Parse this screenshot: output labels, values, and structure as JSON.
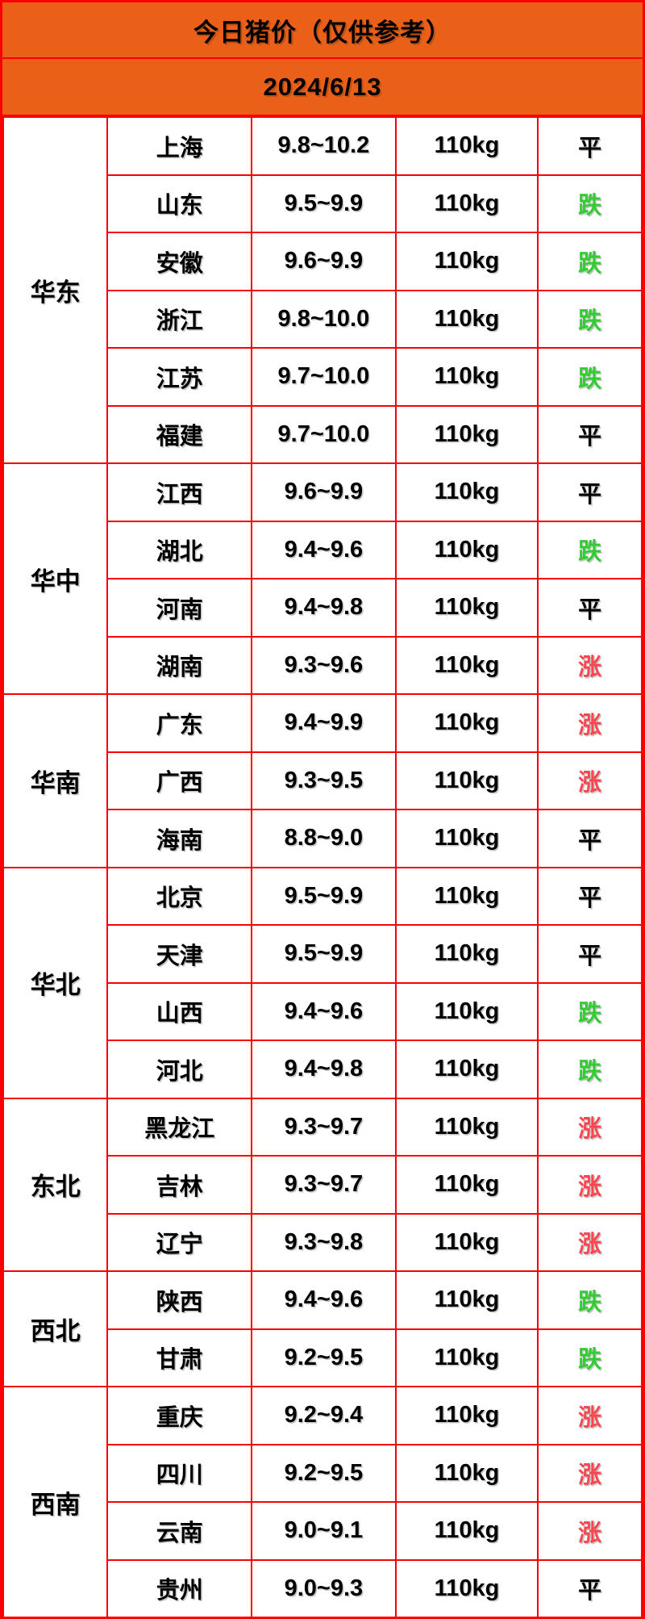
{
  "header": {
    "title": "今日猪价（仅供参考）",
    "date": "2024/6/13"
  },
  "colors": {
    "header_bg": "#ea6018",
    "border": "#fa0000",
    "trend_up": "#fb4550",
    "trend_down": "#33cc33",
    "trend_flat": "#000000"
  },
  "table": {
    "regions": [
      {
        "name": "华东",
        "rows": [
          {
            "province": "上海",
            "price": "9.8~10.2",
            "weight": "110kg",
            "trend": "平",
            "trend_type": "flat"
          },
          {
            "province": "山东",
            "price": "9.5~9.9",
            "weight": "110kg",
            "trend": "跌",
            "trend_type": "down"
          },
          {
            "province": "安徽",
            "price": "9.6~9.9",
            "weight": "110kg",
            "trend": "跌",
            "trend_type": "down"
          },
          {
            "province": "浙江",
            "price": "9.8~10.0",
            "weight": "110kg",
            "trend": "跌",
            "trend_type": "down"
          },
          {
            "province": "江苏",
            "price": "9.7~10.0",
            "weight": "110kg",
            "trend": "跌",
            "trend_type": "down"
          },
          {
            "province": "福建",
            "price": "9.7~10.0",
            "weight": "110kg",
            "trend": "平",
            "trend_type": "flat"
          }
        ]
      },
      {
        "name": "华中",
        "rows": [
          {
            "province": "江西",
            "price": "9.6~9.9",
            "weight": "110kg",
            "trend": "平",
            "trend_type": "flat"
          },
          {
            "province": "湖北",
            "price": "9.4~9.6",
            "weight": "110kg",
            "trend": "跌",
            "trend_type": "down"
          },
          {
            "province": "河南",
            "price": "9.4~9.8",
            "weight": "110kg",
            "trend": "平",
            "trend_type": "flat"
          },
          {
            "province": "湖南",
            "price": "9.3~9.6",
            "weight": "110kg",
            "trend": "涨",
            "trend_type": "up"
          }
        ]
      },
      {
        "name": "华南",
        "rows": [
          {
            "province": "广东",
            "price": "9.4~9.9",
            "weight": "110kg",
            "trend": "涨",
            "trend_type": "up"
          },
          {
            "province": "广西",
            "price": "9.3~9.5",
            "weight": "110kg",
            "trend": "涨",
            "trend_type": "up"
          },
          {
            "province": "海南",
            "price": "8.8~9.0",
            "weight": "110kg",
            "trend": "平",
            "trend_type": "flat"
          }
        ]
      },
      {
        "name": "华北",
        "rows": [
          {
            "province": "北京",
            "price": "9.5~9.9",
            "weight": "110kg",
            "trend": "平",
            "trend_type": "flat"
          },
          {
            "province": "天津",
            "price": "9.5~9.9",
            "weight": "110kg",
            "trend": "平",
            "trend_type": "flat"
          },
          {
            "province": "山西",
            "price": "9.4~9.6",
            "weight": "110kg",
            "trend": "跌",
            "trend_type": "down"
          },
          {
            "province": "河北",
            "price": "9.4~9.8",
            "weight": "110kg",
            "trend": "跌",
            "trend_type": "down"
          }
        ]
      },
      {
        "name": "东北",
        "rows": [
          {
            "province": "黑龙江",
            "price": "9.3~9.7",
            "weight": "110kg",
            "trend": "涨",
            "trend_type": "up"
          },
          {
            "province": "吉林",
            "price": "9.3~9.7",
            "weight": "110kg",
            "trend": "涨",
            "trend_type": "up"
          },
          {
            "province": "辽宁",
            "price": "9.3~9.8",
            "weight": "110kg",
            "trend": "涨",
            "trend_type": "up"
          }
        ]
      },
      {
        "name": "西北",
        "rows": [
          {
            "province": "陕西",
            "price": "9.4~9.6",
            "weight": "110kg",
            "trend": "跌",
            "trend_type": "down"
          },
          {
            "province": "甘肃",
            "price": "9.2~9.5",
            "weight": "110kg",
            "trend": "跌",
            "trend_type": "down"
          }
        ]
      },
      {
        "name": "西南",
        "rows": [
          {
            "province": "重庆",
            "price": "9.2~9.4",
            "weight": "110kg",
            "trend": "涨",
            "trend_type": "up"
          },
          {
            "province": "四川",
            "price": "9.2~9.5",
            "weight": "110kg",
            "trend": "涨",
            "trend_type": "up"
          },
          {
            "province": "云南",
            "price": "9.0~9.1",
            "weight": "110kg",
            "trend": "涨",
            "trend_type": "up"
          },
          {
            "province": "贵州",
            "price": "9.0~9.3",
            "weight": "110kg",
            "trend": "平",
            "trend_type": "flat"
          }
        ]
      }
    ]
  }
}
